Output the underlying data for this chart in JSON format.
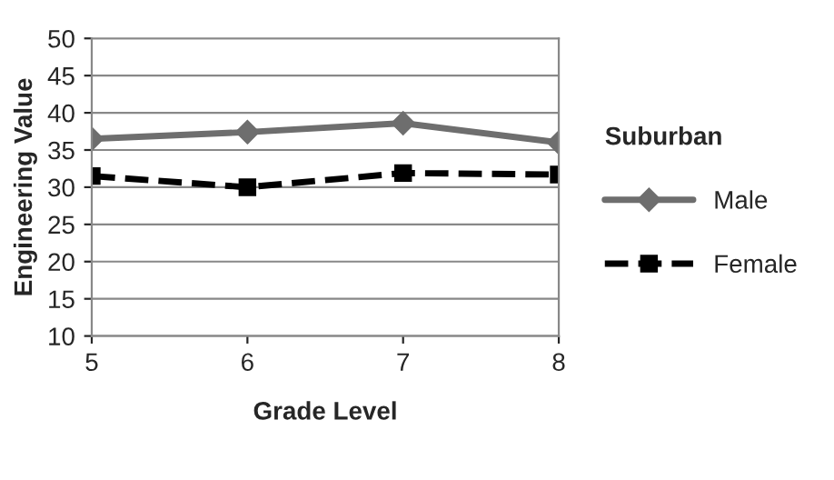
{
  "chart_data": {
    "type": "line",
    "xlabel": "Grade Level",
    "ylabel": "Engineering Value",
    "legend_title": "Suburban",
    "x": [
      5,
      6,
      7,
      8
    ],
    "xlim": [
      5,
      8
    ],
    "xticks": [
      5,
      6,
      7,
      8
    ],
    "ylim": [
      10,
      50
    ],
    "yticks": [
      10,
      15,
      20,
      25,
      30,
      35,
      40,
      45,
      50
    ],
    "grid": "y",
    "legend": "right",
    "series": [
      {
        "name": "Male",
        "color": "#6e6e6e",
        "values": [
          36.5,
          37.4,
          38.6,
          36.0
        ],
        "marker": "diamond",
        "line_style": "solid"
      },
      {
        "name": "Female",
        "color": "#000000",
        "values": [
          31.5,
          30.0,
          31.9,
          31.7
        ],
        "marker": "square",
        "line_style": "dashed"
      }
    ]
  }
}
